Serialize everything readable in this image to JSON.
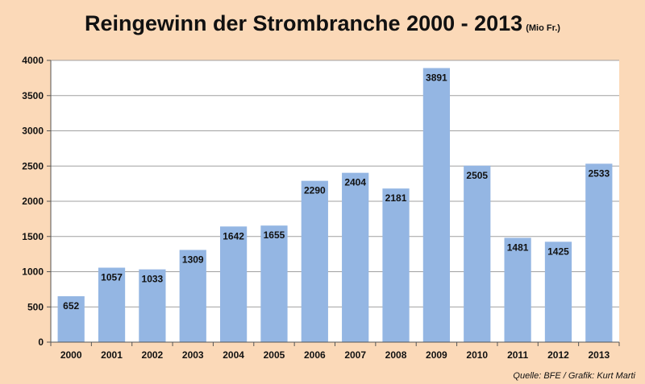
{
  "title": "Reingewinn der Strombranche 2000 - 2013",
  "title_unit": "(Mio Fr.)",
  "source": "Quelle: BFE / Grafik: Kurt Marti",
  "colors": {
    "background": "#fbd9b8",
    "plot_area": "#ffffff",
    "bar": "#94b6e3",
    "grid": "#a0a0a0"
  },
  "chart_data": {
    "type": "bar",
    "categories": [
      "2000",
      "2001",
      "2002",
      "2003",
      "2004",
      "2005",
      "2006",
      "2007",
      "2008",
      "2009",
      "2010",
      "2011",
      "2012",
      "2013"
    ],
    "values": [
      652,
      1057,
      1033,
      1309,
      1642,
      1655,
      2290,
      2404,
      2181,
      3891,
      2505,
      1481,
      1425,
      2533
    ],
    "ylim": [
      0,
      4000
    ],
    "yticks": [
      0,
      500,
      1000,
      1500,
      2000,
      2500,
      3000,
      3500,
      4000
    ],
    "grid": true,
    "data_labels": true,
    "xlabel": "",
    "ylabel": ""
  }
}
